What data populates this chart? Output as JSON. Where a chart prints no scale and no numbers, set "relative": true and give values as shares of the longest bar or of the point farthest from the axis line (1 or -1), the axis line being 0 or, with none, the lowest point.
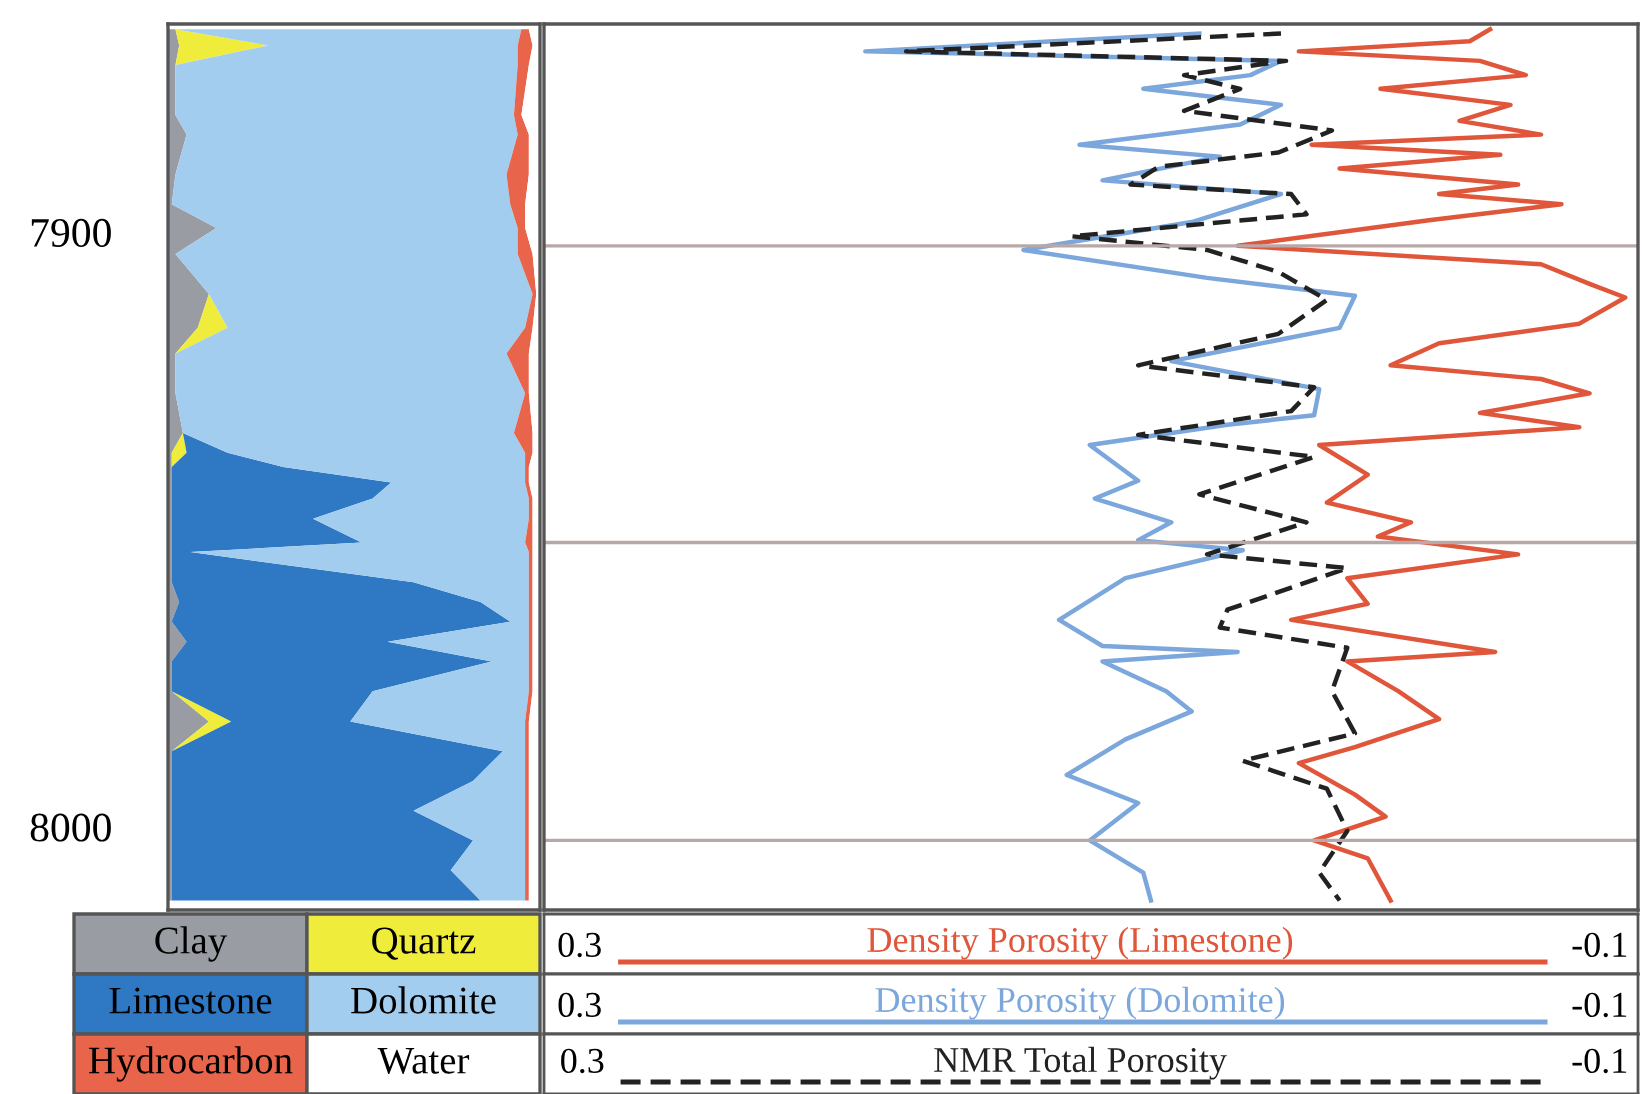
{
  "chart_data": [
    {
      "type": "area",
      "stacked": true,
      "orientation": "horizontal",
      "relative": true,
      "legend": "bottom",
      "tick_labels": "y",
      "ylim": [
        8014,
        7865
      ],
      "yticks": [
        7900,
        8000
      ],
      "x": [
        7865.9,
        7868.6,
        7871.9,
        7880.3,
        7883.6,
        7890.3,
        7895.3,
        7899.3,
        7903.7,
        7910.4,
        7916.1,
        7920.4,
        7927.1,
        7933.8,
        7937.1,
        7939.5,
        7942.1,
        7944.8,
        7948.2,
        7952.2,
        7953.8,
        7958.9,
        7962.2,
        7965.5,
        7968.9,
        7972.2,
        7977.2,
        7982.3,
        7987.3,
        7992.3,
        7997.3,
        8002.3,
        8007.3,
        8012.4
      ],
      "series": [
        {
          "name": "Clay",
          "color": "#9a9ca3",
          "values": [
            0.02,
            0.03,
            0.02,
            0.02,
            0.05,
            0.02,
            0.01,
            0.13,
            0.02,
            0.11,
            0.08,
            0.02,
            0.02,
            0.04,
            0.01,
            0.01,
            0.01,
            0.01,
            0.01,
            0.01,
            0.01,
            0.01,
            0.03,
            0.01,
            0.05,
            0.01,
            0.01,
            0.11,
            0.01,
            0.01,
            0.01,
            0.01,
            0.01,
            0.01
          ]
        },
        {
          "name": "Quartz",
          "color": "#f0ec3c",
          "values": [
            0,
            0.24,
            0,
            0,
            0,
            0,
            0,
            0,
            0,
            0,
            0.08,
            0,
            0,
            0,
            0.04,
            0,
            0,
            0,
            0,
            0,
            0,
            0,
            0,
            0,
            0,
            0,
            0,
            0.06,
            0,
            0,
            0,
            0,
            0,
            0
          ]
        },
        {
          "name": "Limestone",
          "color": "#2f78c4",
          "values": [
            0,
            0,
            0,
            0,
            0,
            0,
            0,
            0,
            0,
            0,
            0,
            0,
            0,
            0,
            0.11,
            0.3,
            0.59,
            0.54,
            0.38,
            0.51,
            0.05,
            0.65,
            0.81,
            0.91,
            0.54,
            0.86,
            0.54,
            0.32,
            0.89,
            0.81,
            0.65,
            0.81,
            0.75,
            0.83
          ]
        },
        {
          "name": "Dolomite",
          "color": "#a3cdee",
          "values": [
            0.93,
            0.67,
            0.92,
            0.91,
            0.89,
            0.89,
            0.91,
            0.81,
            0.92,
            0.87,
            0.8,
            0.89,
            0.94,
            0.89,
            0.8,
            0.65,
            0.36,
            0.42,
            0.58,
            0.44,
            0.91,
            0.31,
            0.13,
            0.05,
            0.38,
            0.1,
            0.42,
            0.47,
            0.06,
            0.14,
            0.3,
            0.14,
            0.2,
            0.12
          ]
        },
        {
          "name": "Hydrocarbon",
          "color": "#e8644a",
          "values": [
            0.02,
            0.04,
            0.03,
            0.02,
            0.03,
            0.06,
            0.04,
            0.02,
            0.04,
            0.01,
            0.02,
            0.06,
            0.01,
            0.05,
            0.02,
            0.01,
            0.01,
            0.01,
            0.01,
            0.02,
            0.01,
            0.01,
            0.01,
            0.01,
            0.01,
            0.01,
            0.01,
            0.01,
            0.01,
            0.01,
            0.01,
            0.01,
            0.01,
            0.01
          ]
        },
        {
          "name": "Water",
          "color": "#ffffff",
          "values": [
            0.03,
            0.02,
            0.03,
            0.05,
            0.03,
            0.03,
            0.04,
            0.04,
            0.02,
            0.01,
            0.02,
            0.03,
            0.03,
            0.02,
            0.02,
            0.03,
            0.03,
            0.02,
            0.02,
            0.02,
            0.02,
            0.02,
            0.02,
            0.02,
            0.02,
            0.02,
            0.02,
            0.03,
            0.03,
            0.03,
            0.03,
            0.03,
            0.03,
            0.03
          ]
        }
      ]
    },
    {
      "type": "line",
      "orientation": "horizontal",
      "legend": "bottom",
      "tick_labels": "x",
      "marker": "none",
      "ylim": [
        8014,
        7865
      ],
      "xlim": [
        0.314,
        -0.115
      ],
      "xticks": [
        0.3,
        -0.1
      ],
      "x2lim": [
        0.314,
        -0.115
      ],
      "x2ticks": [
        0.3,
        -0.1
      ],
      "annotations": [
        "0.3",
        "-0.1"
      ],
      "ref_lines": [
        {
          "axis": "y",
          "value": 7902.3,
          "color": "#b8a8a8"
        },
        {
          "axis": "y",
          "value": 7952.2,
          "color": "#b8a8a8"
        },
        {
          "axis": "y",
          "value": 8002.3,
          "color": "#b8a8a8"
        }
      ],
      "series": [
        {
          "name": "Density Porosity (Limestone)",
          "color": "#e0563a",
          "line_style": "solid",
          "x": [
            7865.9,
            7867.9,
            7869.6,
            7871.2,
            7873.6,
            7875.9,
            7878.6,
            7881.3,
            7883.6,
            7885.3,
            7887.0,
            7889.3,
            7892.0,
            7893.6,
            7895.3,
            7898.0,
            7902.3,
            7905.4,
            7908.7,
            7911.0,
            7915.4,
            7918.7,
            7922.4,
            7924.7,
            7927.1,
            7930.4,
            7932.8,
            7935.8,
            7940.8,
            7945.5,
            7948.8,
            7951.2,
            7954.2,
            7958.2,
            7962.5,
            7965.2,
            7970.6,
            7972.2,
            7977.2,
            7981.9,
            7986.6,
            7989.3,
            7994.6,
            7998.3,
            8002.3,
            8005.3,
            8012.4
          ],
          "values": [
            -0.057,
            -0.049,
            0.018,
            -0.053,
            -0.071,
            -0.014,
            -0.065,
            -0.045,
            -0.077,
            0.013,
            -0.061,
            0.002,
            -0.068,
            -0.037,
            -0.085,
            -0.033,
            0.042,
            -0.077,
            -0.096,
            -0.11,
            -0.092,
            -0.037,
            -0.018,
            -0.077,
            -0.096,
            -0.053,
            -0.092,
            0.01,
            -0.009,
            0.007,
            -0.026,
            -0.013,
            -0.068,
            -0.001,
            -0.009,
            0.021,
            -0.059,
            -0.001,
            -0.021,
            -0.037,
            -0.004,
            0.018,
            -0.004,
            -0.016,
            0.012,
            -0.009,
            -0.018
          ]
        },
        {
          "name": "Density Porosity (Dolomite)",
          "color": "#7ba7dc",
          "line_style": "solid",
          "x": [
            7866.6,
            7869.6,
            7871.2,
            7873.6,
            7875.9,
            7878.6,
            7881.9,
            7885.3,
            7887.3,
            7891.3,
            7893.6,
            7898.3,
            7903.0,
            7907.7,
            7910.7,
            7916.1,
            7921.7,
            7926.4,
            7930.8,
            7932.4,
            7935.8,
            7941.8,
            7944.8,
            7948.8,
            7951.8,
            7953.5,
            7958.2,
            7965.2,
            7969.6,
            7970.6,
            7972.2,
            7977.2,
            7980.6,
            7985.3,
            7991.3,
            7996.0,
            8002.3,
            8007.7,
            8012.4
          ],
          "values": [
            0.057,
            0.188,
            0.025,
            0.037,
            0.079,
            0.025,
            0.041,
            0.104,
            0.049,
            0.095,
            0.025,
            0.06,
            0.126,
            0.054,
            -0.004,
            0.002,
            0.068,
            0.01,
            0.012,
            0.046,
            0.1,
            0.081,
            0.098,
            0.068,
            0.081,
            0.04,
            0.086,
            0.112,
            0.095,
            0.042,
            0.095,
            0.07,
            0.06,
            0.086,
            0.109,
            0.081,
            0.1,
            0.079,
            0.076
          ]
        },
        {
          "name": "NMR Total Porosity",
          "color": "#222222",
          "line_style": "dashed",
          "x": [
            7866.6,
            7869.6,
            7871.2,
            7873.6,
            7875.9,
            7879.6,
            7882.9,
            7886.6,
            7889.0,
            7892.0,
            7893.6,
            7897.0,
            7900.7,
            7903.0,
            7906.7,
            7911.4,
            7917.1,
            7922.4,
            7926.1,
            7930.1,
            7934.1,
            7937.8,
            7944.1,
            7948.8,
            7954.2,
            7956.5,
            7963.5,
            7966.5,
            7969.9,
            7977.2,
            7984.3,
            7988.9,
            7993.6,
            8000.7,
            8007.7,
            8012.4
          ],
          "values": [
            0.025,
            0.172,
            0.023,
            0.063,
            0.041,
            0.063,
            0.005,
            0.026,
            0.073,
            0.084,
            0.021,
            0.015,
            0.107,
            0.054,
            0.026,
            0.007,
            0.026,
            0.081,
            0.012,
            0.021,
            0.081,
            0.012,
            0.057,
            0.015,
            0.054,
            -0.001,
            0.046,
            0.049,
            -0.001,
            0.005,
            -0.004,
            0.04,
            0.007,
            -0.001,
            0.01,
            0.002
          ]
        }
      ]
    }
  ]
}
